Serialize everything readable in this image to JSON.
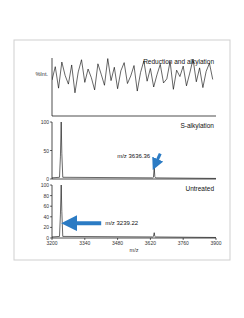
{
  "chart_data": [
    {
      "type": "line",
      "title": "Reduction and alkylation",
      "y_label": "%Int.",
      "x": [
        3200,
        3214,
        3228,
        3242,
        3256,
        3270,
        3284,
        3298,
        3312,
        3326,
        3340,
        3354,
        3368,
        3382,
        3396,
        3410,
        3424,
        3438,
        3452,
        3466,
        3480,
        3494,
        3508,
        3522,
        3536,
        3550,
        3564,
        3578,
        3592,
        3606,
        3620,
        3634,
        3648,
        3662,
        3676,
        3690,
        3704,
        3718,
        3732,
        3746,
        3760,
        3774,
        3788,
        3802,
        3816,
        3830,
        3844,
        3858,
        3872,
        3886
      ],
      "series": [
        {
          "name": "Reduction and alkylation",
          "color": "#000000",
          "values": [
            62,
            85,
            48,
            93,
            70,
            55,
            88,
            40,
            76,
            97,
            58,
            81,
            66,
            45,
            90,
            72,
            53,
            99,
            61,
            84,
            47,
            78,
            92,
            56,
            69,
            87,
            43,
            75,
            95,
            60,
            82,
            50,
            71,
            89,
            57,
            64,
            94,
            46,
            79,
            68,
            86,
            52,
            74,
            98,
            59,
            83,
            49,
            77,
            91,
            63
          ]
        }
      ],
      "xlim": [
        3200,
        3900
      ],
      "ylim": [
        0,
        100
      ],
      "tick_labels": false
    },
    {
      "type": "line",
      "title": "S-alkylation",
      "x": [
        3200,
        3232,
        3236,
        3239.22,
        3242,
        3246,
        3630,
        3633,
        3636.36,
        3639,
        3642,
        3900
      ],
      "series": [
        {
          "name": "S-alkylation",
          "color": "#000000",
          "values": [
            2,
            3,
            40,
            100,
            45,
            3,
            2,
            3,
            20,
            4,
            2,
            1
          ]
        }
      ],
      "xlim": [
        3200,
        3900
      ],
      "ylim": [
        0,
        100
      ],
      "yticks": [
        0,
        50,
        100
      ],
      "tick_labels": "y",
      "annotations": [
        {
          "text": "m/z 3636.36",
          "x": 3636.36,
          "y": 20
        }
      ]
    },
    {
      "type": "line",
      "title": "Untreated",
      "x_label": "m/z",
      "x": [
        3200,
        3232,
        3236,
        3239.22,
        3242,
        3246,
        3630,
        3633,
        3636.36,
        3639,
        3642,
        3900
      ],
      "series": [
        {
          "name": "Untreated",
          "color": "#000000",
          "values": [
            2,
            3,
            45,
            100,
            50,
            3,
            2,
            3,
            10,
            3,
            2,
            1
          ]
        }
      ],
      "xlim": [
        3200,
        3900
      ],
      "xticks": [
        3200,
        3340,
        3480,
        3620,
        3760,
        3900
      ],
      "ylim": [
        0,
        100
      ],
      "yticks": [
        0,
        20,
        40,
        60,
        80,
        100
      ],
      "tick_labels": true,
      "annotations": [
        {
          "text": "m/z 3239.22",
          "x": 3239.22,
          "y": 100
        }
      ]
    }
  ]
}
